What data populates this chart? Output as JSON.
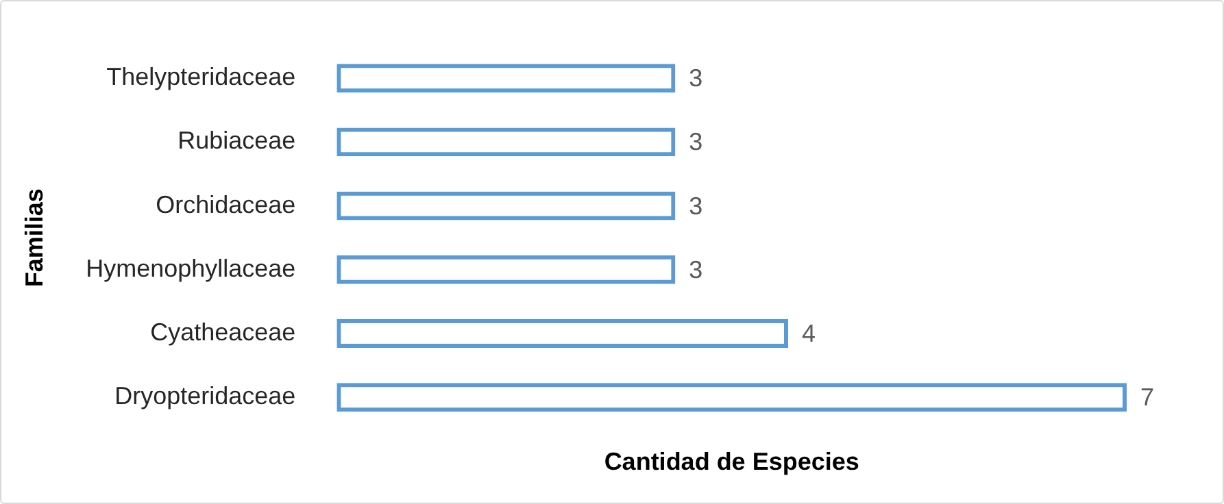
{
  "chart_data": {
    "type": "bar",
    "orientation": "horizontal",
    "xlabel": "Cantidad de Especies",
    "ylabel": "Familias",
    "categories": [
      "Thelypteridaceae",
      "Rubiaceae",
      "Orchidaceae",
      "Hymenophyllaceae",
      "Cyatheaceae",
      "Dryopteridaceae"
    ],
    "values": [
      3,
      3,
      3,
      3,
      4,
      7
    ],
    "color": "#5b9bd5",
    "data_labels": true,
    "grid": false,
    "legend": false
  }
}
